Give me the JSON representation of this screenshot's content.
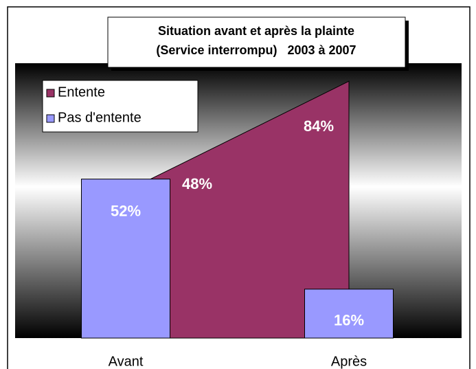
{
  "chart_data": {
    "type": "bar-area",
    "title": "Situation avant et après la plainte",
    "subtitle": "(Service interrompu)   2003 à 2007",
    "categories": [
      "Avant",
      "Après"
    ],
    "series": [
      {
        "name": "Entente",
        "type": "area",
        "color": "#993366",
        "values": [
          48,
          84
        ],
        "value_labels": [
          "48%",
          "84%"
        ]
      },
      {
        "name": "Pas d'entente",
        "type": "bar",
        "color": "#9999ff",
        "values": [
          52,
          16
        ],
        "value_labels": [
          "52%",
          "16%"
        ]
      }
    ],
    "ylim": [
      0,
      100
    ]
  }
}
